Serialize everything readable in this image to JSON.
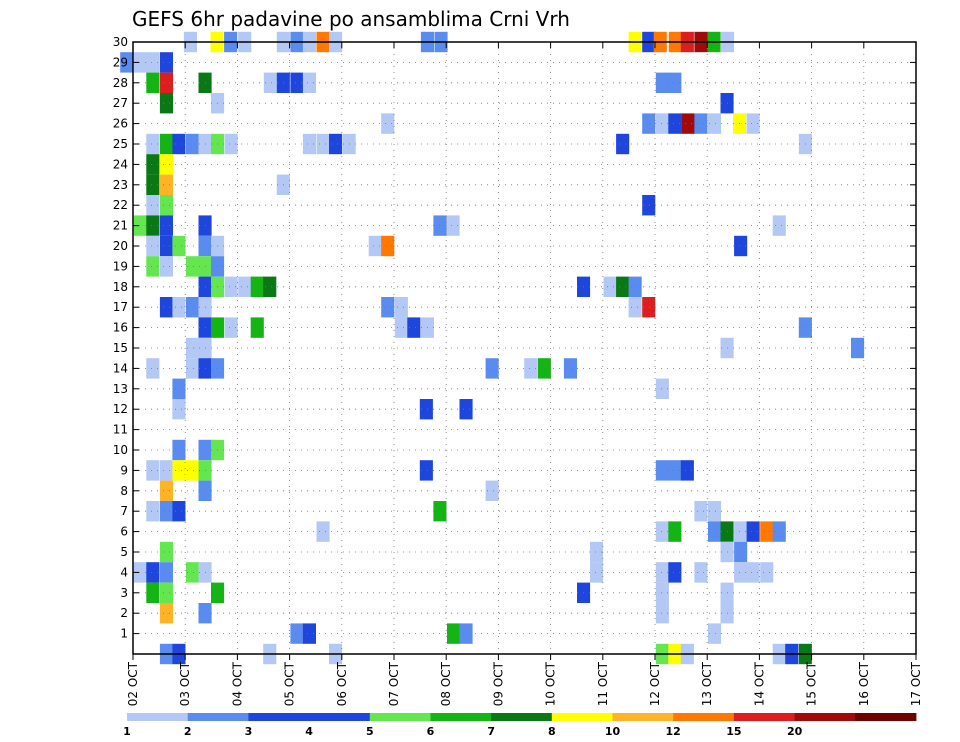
{
  "chart_data": {
    "type": "heatmap",
    "title": "GEFS 6hr padavine po ansamblima Crni Vrh",
    "xlabel": "",
    "ylabel": "",
    "x_ticks": [
      "02 OCT",
      "03 OCT",
      "04 OCT",
      "05 OCT",
      "06 OCT",
      "07 OCT",
      "08 OCT",
      "09 OCT",
      "10 OCT",
      "11 OCT",
      "12 OCT",
      "13 OCT",
      "14 OCT",
      "15 OCT",
      "16 OCT",
      "17 OCT"
    ],
    "y_ticks": [
      "1",
      "2",
      "3",
      "4",
      "5",
      "6",
      "7",
      "8",
      "9",
      "10",
      "11",
      "12",
      "13",
      "14",
      "15",
      "16",
      "17",
      "18",
      "19",
      "20",
      "21",
      "22",
      "23",
      "24",
      "25",
      "26",
      "27",
      "28",
      "29",
      "30"
    ],
    "x_range": [
      "02 OCT 00Z",
      "17 OCT 00Z"
    ],
    "y_range": [
      0,
      30
    ],
    "grid": true,
    "colorbar": {
      "labels": [
        "1",
        "2",
        "3",
        "4",
        "5",
        "6",
        "7",
        "8",
        "10",
        "12",
        "15",
        "20"
      ],
      "colors": [
        "#b4c8f5",
        "#5a8cf0",
        "#1e46dc",
        "#1e46dc",
        "#64e650",
        "#14b414",
        "#0a7814",
        "#ffff00",
        "#ffb428",
        "#ff7800",
        "#dc1e1e",
        "#a00a0a",
        "#6e0000"
      ]
    },
    "cells": [
      {
        "member": 30,
        "day": 3.1,
        "value": 1
      },
      {
        "member": 30,
        "day": 3.61,
        "value": 8
      },
      {
        "member": 30,
        "day": 3.87,
        "value": 2
      },
      {
        "member": 30,
        "day": 4.14,
        "value": 1
      },
      {
        "member": 30,
        "day": 4.88,
        "value": 1
      },
      {
        "member": 30,
        "day": 5.14,
        "value": 2
      },
      {
        "member": 30,
        "day": 5.38,
        "value": 1
      },
      {
        "member": 30,
        "day": 5.64,
        "value": 12
      },
      {
        "member": 30,
        "day": 5.88,
        "value": 1
      },
      {
        "member": 30,
        "day": 7.64,
        "value": 2
      },
      {
        "member": 30,
        "day": 7.9,
        "value": 2
      },
      {
        "member": 30,
        "day": 11.62,
        "value": 8
      },
      {
        "member": 30,
        "day": 11.88,
        "value": 3
      },
      {
        "member": 30,
        "day": 12.1,
        "value": 12
      },
      {
        "member": 30,
        "day": 12.39,
        "value": 12
      },
      {
        "member": 30,
        "day": 12.62,
        "value": 15
      },
      {
        "member": 30,
        "day": 12.88,
        "value": 20
      },
      {
        "member": 30,
        "day": 13.13,
        "value": 6
      },
      {
        "member": 30,
        "day": 13.39,
        "value": 1
      },
      {
        "member": 29,
        "day": 1.88,
        "value": 2
      },
      {
        "member": 29,
        "day": 2.14,
        "value": 1
      },
      {
        "member": 29,
        "day": 2.38,
        "value": 1
      },
      {
        "member": 29,
        "day": 2.64,
        "value": 3
      },
      {
        "member": 28,
        "day": 2.38,
        "value": 6
      },
      {
        "member": 28,
        "day": 2.64,
        "value": 15
      },
      {
        "member": 28,
        "day": 3.38,
        "value": 7
      },
      {
        "member": 28,
        "day": 4.63,
        "value": 1
      },
      {
        "member": 28,
        "day": 4.88,
        "value": 3
      },
      {
        "member": 28,
        "day": 5.14,
        "value": 3
      },
      {
        "member": 28,
        "day": 5.38,
        "value": 1
      },
      {
        "member": 28,
        "day": 12.14,
        "value": 2
      },
      {
        "member": 28,
        "day": 12.38,
        "value": 2
      },
      {
        "member": 27,
        "day": 2.64,
        "value": 7
      },
      {
        "member": 27,
        "day": 3.62,
        "value": 1
      },
      {
        "member": 27,
        "day": 13.38,
        "value": 3
      },
      {
        "member": 26,
        "day": 6.88,
        "value": 1
      },
      {
        "member": 26,
        "day": 11.88,
        "value": 2
      },
      {
        "member": 26,
        "day": 12.14,
        "value": 1
      },
      {
        "member": 26,
        "day": 12.38,
        "value": 3
      },
      {
        "member": 26,
        "day": 12.63,
        "value": 20
      },
      {
        "member": 26,
        "day": 12.88,
        "value": 2
      },
      {
        "member": 26,
        "day": 13.14,
        "value": 1
      },
      {
        "member": 26,
        "day": 13.62,
        "value": 8
      },
      {
        "member": 26,
        "day": 13.88,
        "value": 1
      },
      {
        "member": 25,
        "day": 2.38,
        "value": 1
      },
      {
        "member": 25,
        "day": 2.64,
        "value": 6
      },
      {
        "member": 25,
        "day": 2.88,
        "value": 3
      },
      {
        "member": 25,
        "day": 3.14,
        "value": 2
      },
      {
        "member": 25,
        "day": 3.38,
        "value": 1
      },
      {
        "member": 25,
        "day": 3.62,
        "value": 5
      },
      {
        "member": 25,
        "day": 3.88,
        "value": 1
      },
      {
        "member": 25,
        "day": 5.38,
        "value": 1
      },
      {
        "member": 25,
        "day": 5.64,
        "value": 1
      },
      {
        "member": 25,
        "day": 5.88,
        "value": 3
      },
      {
        "member": 25,
        "day": 6.14,
        "value": 1
      },
      {
        "member": 25,
        "day": 11.38,
        "value": 3
      },
      {
        "member": 25,
        "day": 14.88,
        "value": 1
      },
      {
        "member": 24,
        "day": 2.38,
        "value": 7
      },
      {
        "member": 24,
        "day": 2.64,
        "value": 8
      },
      {
        "member": 23,
        "day": 2.38,
        "value": 7
      },
      {
        "member": 23,
        "day": 2.64,
        "value": 10
      },
      {
        "member": 23,
        "day": 4.88,
        "value": 1
      },
      {
        "member": 22,
        "day": 2.38,
        "value": 1
      },
      {
        "member": 22,
        "day": 2.64,
        "value": 5
      },
      {
        "member": 22,
        "day": 11.88,
        "value": 3
      },
      {
        "member": 21,
        "day": 2.14,
        "value": 5
      },
      {
        "member": 21,
        "day": 2.38,
        "value": 7
      },
      {
        "member": 21,
        "day": 2.64,
        "value": 3
      },
      {
        "member": 21,
        "day": 3.38,
        "value": 3
      },
      {
        "member": 21,
        "day": 7.88,
        "value": 2
      },
      {
        "member": 21,
        "day": 8.13,
        "value": 1
      },
      {
        "member": 21,
        "day": 14.38,
        "value": 1
      },
      {
        "member": 20,
        "day": 2.38,
        "value": 1
      },
      {
        "member": 20,
        "day": 2.64,
        "value": 3
      },
      {
        "member": 20,
        "day": 2.88,
        "value": 5
      },
      {
        "member": 20,
        "day": 3.38,
        "value": 2
      },
      {
        "member": 20,
        "day": 3.62,
        "value": 1
      },
      {
        "member": 20,
        "day": 6.64,
        "value": 1
      },
      {
        "member": 20,
        "day": 6.88,
        "value": 12
      },
      {
        "member": 20,
        "day": 13.64,
        "value": 3
      },
      {
        "member": 19,
        "day": 2.38,
        "value": 5
      },
      {
        "member": 19,
        "day": 2.64,
        "value": 1
      },
      {
        "member": 19,
        "day": 3.14,
        "value": 5
      },
      {
        "member": 19,
        "day": 3.38,
        "value": 5
      },
      {
        "member": 19,
        "day": 3.62,
        "value": 2
      },
      {
        "member": 18,
        "day": 3.38,
        "value": 3
      },
      {
        "member": 18,
        "day": 3.62,
        "value": 5
      },
      {
        "member": 18,
        "day": 3.88,
        "value": 1
      },
      {
        "member": 18,
        "day": 4.14,
        "value": 1
      },
      {
        "member": 18,
        "day": 4.38,
        "value": 6
      },
      {
        "member": 18,
        "day": 4.62,
        "value": 7
      },
      {
        "member": 18,
        "day": 10.63,
        "value": 3
      },
      {
        "member": 18,
        "day": 11.14,
        "value": 1
      },
      {
        "member": 18,
        "day": 11.38,
        "value": 7
      },
      {
        "member": 18,
        "day": 11.62,
        "value": 2
      },
      {
        "member": 17,
        "day": 2.64,
        "value": 3
      },
      {
        "member": 17,
        "day": 2.88,
        "value": 1
      },
      {
        "member": 17,
        "day": 3.14,
        "value": 2
      },
      {
        "member": 17,
        "day": 3.38,
        "value": 1
      },
      {
        "member": 17,
        "day": 6.88,
        "value": 2
      },
      {
        "member": 17,
        "day": 7.14,
        "value": 1
      },
      {
        "member": 17,
        "day": 11.62,
        "value": 1
      },
      {
        "member": 17,
        "day": 11.88,
        "value": 15
      },
      {
        "member": 16,
        "day": 3.38,
        "value": 3
      },
      {
        "member": 16,
        "day": 3.62,
        "value": 6
      },
      {
        "member": 16,
        "day": 3.88,
        "value": 1
      },
      {
        "member": 16,
        "day": 4.38,
        "value": 6
      },
      {
        "member": 16,
        "day": 7.14,
        "value": 1
      },
      {
        "member": 16,
        "day": 7.38,
        "value": 3
      },
      {
        "member": 16,
        "day": 7.64,
        "value": 1
      },
      {
        "member": 16,
        "day": 14.88,
        "value": 2
      },
      {
        "member": 15,
        "day": 3.14,
        "value": 1
      },
      {
        "member": 15,
        "day": 3.38,
        "value": 1
      },
      {
        "member": 15,
        "day": 13.38,
        "value": 1
      },
      {
        "member": 15,
        "day": 15.88,
        "value": 2
      },
      {
        "member": 14,
        "day": 2.38,
        "value": 1
      },
      {
        "member": 14,
        "day": 3.14,
        "value": 1
      },
      {
        "member": 14,
        "day": 3.38,
        "value": 3
      },
      {
        "member": 14,
        "day": 3.62,
        "value": 2
      },
      {
        "member": 14,
        "day": 8.88,
        "value": 2
      },
      {
        "member": 14,
        "day": 9.62,
        "value": 1
      },
      {
        "member": 14,
        "day": 9.88,
        "value": 6
      },
      {
        "member": 14,
        "day": 10.38,
        "value": 2
      },
      {
        "member": 13,
        "day": 2.88,
        "value": 2
      },
      {
        "member": 13,
        "day": 12.14,
        "value": 1
      },
      {
        "member": 12,
        "day": 2.88,
        "value": 1
      },
      {
        "member": 12,
        "day": 7.62,
        "value": 3
      },
      {
        "member": 12,
        "day": 8.38,
        "value": 3
      },
      {
        "member": 10,
        "day": 2.88,
        "value": 2
      },
      {
        "member": 10,
        "day": 3.38,
        "value": 2
      },
      {
        "member": 10,
        "day": 3.62,
        "value": 5
      },
      {
        "member": 9,
        "day": 2.38,
        "value": 1
      },
      {
        "member": 9,
        "day": 2.64,
        "value": 1
      },
      {
        "member": 9,
        "day": 2.88,
        "value": 8
      },
      {
        "member": 9,
        "day": 3.14,
        "value": 8
      },
      {
        "member": 9,
        "day": 3.38,
        "value": 5
      },
      {
        "member": 9,
        "day": 7.62,
        "value": 3
      },
      {
        "member": 9,
        "day": 12.14,
        "value": 2
      },
      {
        "member": 9,
        "day": 12.38,
        "value": 2
      },
      {
        "member": 9,
        "day": 12.62,
        "value": 3
      },
      {
        "member": 8,
        "day": 2.64,
        "value": 10
      },
      {
        "member": 8,
        "day": 3.38,
        "value": 2
      },
      {
        "member": 8,
        "day": 8.88,
        "value": 1
      },
      {
        "member": 7,
        "day": 2.38,
        "value": 1
      },
      {
        "member": 7,
        "day": 2.64,
        "value": 2
      },
      {
        "member": 7,
        "day": 2.88,
        "value": 3
      },
      {
        "member": 7,
        "day": 7.88,
        "value": 6
      },
      {
        "member": 7,
        "day": 12.88,
        "value": 1
      },
      {
        "member": 7,
        "day": 13.14,
        "value": 1
      },
      {
        "member": 6,
        "day": 5.64,
        "value": 1
      },
      {
        "member": 6,
        "day": 12.14,
        "value": 1
      },
      {
        "member": 6,
        "day": 12.38,
        "value": 6
      },
      {
        "member": 6,
        "day": 13.14,
        "value": 2
      },
      {
        "member": 6,
        "day": 13.38,
        "value": 7
      },
      {
        "member": 6,
        "day": 13.64,
        "value": 1
      },
      {
        "member": 6,
        "day": 13.88,
        "value": 3
      },
      {
        "member": 6,
        "day": 14.14,
        "value": 12
      },
      {
        "member": 6,
        "day": 14.38,
        "value": 2
      },
      {
        "member": 5,
        "day": 2.64,
        "value": 5
      },
      {
        "member": 5,
        "day": 10.88,
        "value": 1
      },
      {
        "member": 5,
        "day": 13.38,
        "value": 1
      },
      {
        "member": 5,
        "day": 13.64,
        "value": 2
      },
      {
        "member": 4,
        "day": 2.14,
        "value": 1
      },
      {
        "member": 4,
        "day": 2.38,
        "value": 3
      },
      {
        "member": 4,
        "day": 2.64,
        "value": 2
      },
      {
        "member": 4,
        "day": 3.14,
        "value": 5
      },
      {
        "member": 4,
        "day": 3.38,
        "value": 1
      },
      {
        "member": 4,
        "day": 10.88,
        "value": 1
      },
      {
        "member": 4,
        "day": 12.14,
        "value": 1
      },
      {
        "member": 4,
        "day": 12.38,
        "value": 3
      },
      {
        "member": 4,
        "day": 12.88,
        "value": 1
      },
      {
        "member": 4,
        "day": 13.64,
        "value": 1
      },
      {
        "member": 4,
        "day": 13.88,
        "value": 1
      },
      {
        "member": 4,
        "day": 14.14,
        "value": 1
      },
      {
        "member": 3,
        "day": 2.64,
        "value": 5
      },
      {
        "member": 3,
        "day": 2.38,
        "value": 6
      },
      {
        "member": 3,
        "day": 3.62,
        "value": 6
      },
      {
        "member": 3,
        "day": 10.63,
        "value": 3
      },
      {
        "member": 3,
        "day": 12.14,
        "value": 1
      },
      {
        "member": 3,
        "day": 13.38,
        "value": 1
      },
      {
        "member": 2,
        "day": 2.64,
        "value": 10
      },
      {
        "member": 2,
        "day": 3.38,
        "value": 2
      },
      {
        "member": 2,
        "day": 12.14,
        "value": 1
      },
      {
        "member": 2,
        "day": 13.38,
        "value": 1
      },
      {
        "member": 1,
        "day": 5.14,
        "value": 2
      },
      {
        "member": 1,
        "day": 5.38,
        "value": 3
      },
      {
        "member": 1,
        "day": 8.14,
        "value": 6
      },
      {
        "member": 1,
        "day": 8.38,
        "value": 2
      },
      {
        "member": 1,
        "day": 13.14,
        "value": 1
      },
      {
        "member": 0,
        "day": 2.64,
        "value": 2
      },
      {
        "member": 0,
        "day": 2.88,
        "value": 3
      },
      {
        "member": 0,
        "day": 4.62,
        "value": 1
      },
      {
        "member": 0,
        "day": 5.88,
        "value": 1
      },
      {
        "member": 0,
        "day": 12.14,
        "value": 5
      },
      {
        "member": 0,
        "day": 12.38,
        "value": 8
      },
      {
        "member": 0,
        "day": 12.62,
        "value": 1
      },
      {
        "member": 0,
        "day": 14.38,
        "value": 1
      },
      {
        "member": 0,
        "day": 14.62,
        "value": 3
      },
      {
        "member": 0,
        "day": 14.88,
        "value": 7
      }
    ]
  }
}
